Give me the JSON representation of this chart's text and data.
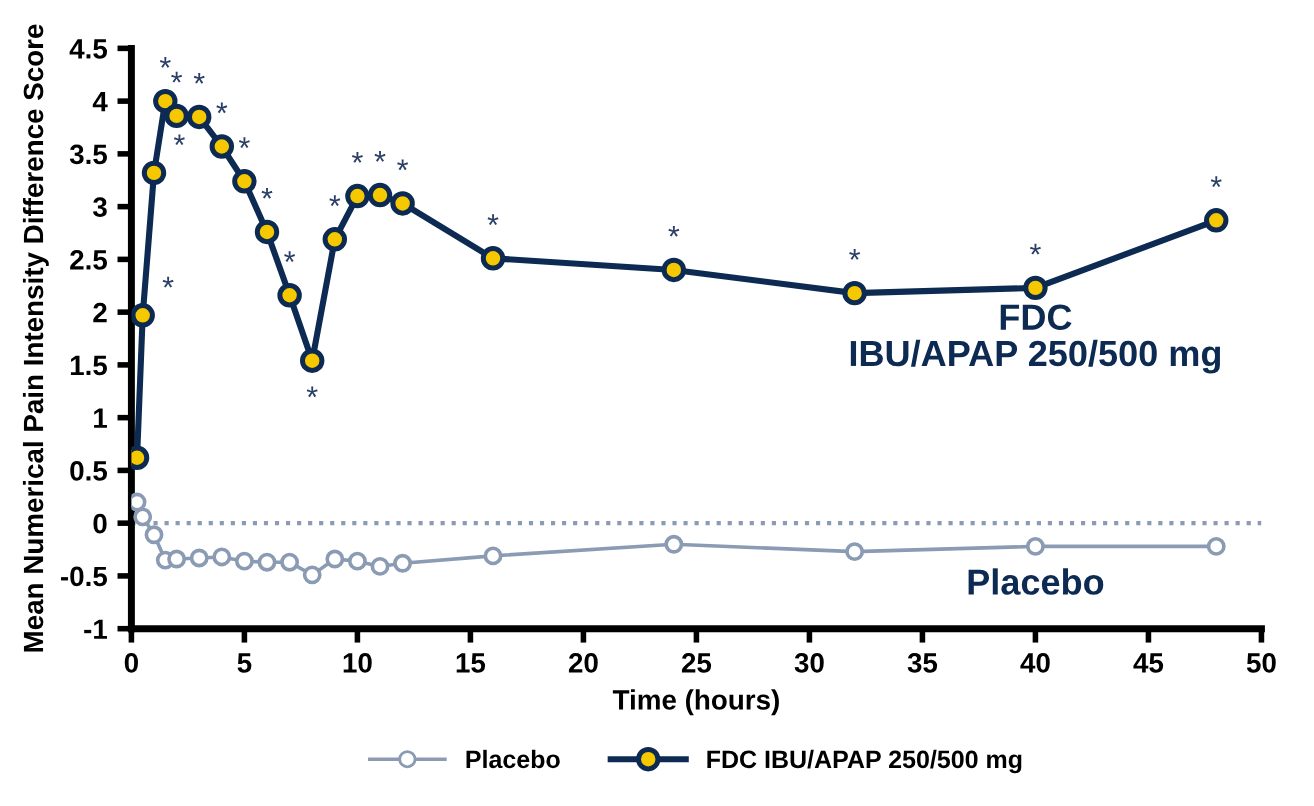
{
  "chart_data": {
    "type": "line",
    "xlabel": "Time (hours)",
    "ylabel": "Mean Numerical Pain Intensity Difference Score",
    "x": [
      0.25,
      0.5,
      1,
      1.5,
      2,
      3,
      4,
      5,
      6,
      7,
      8,
      9,
      10,
      11,
      12,
      16,
      24,
      32,
      40,
      48
    ],
    "series": [
      {
        "name": "Placebo",
        "color": "#8a9bb3",
        "values": [
          0.2,
          0.06,
          -0.11,
          -0.35,
          -0.34,
          -0.33,
          -0.32,
          -0.36,
          -0.37,
          -0.37,
          -0.49,
          -0.34,
          -0.36,
          -0.41,
          -0.38,
          -0.31,
          -0.2,
          -0.27,
          -0.22,
          -0.22
        ]
      },
      {
        "name": "FDC IBU/APAP 250/500 mg",
        "color": "#0d2a52",
        "colors": [
          "#f5c800",
          "#f5c800",
          "#f5c800",
          "#f5c800",
          "#f5c800",
          "#f5c800",
          "#f5c800",
          "#f5c800",
          "#f5c800",
          "#f5c800",
          "#f5c800",
          "#f5c800",
          "#f5c800",
          "#f5c800",
          "#f5c800",
          "#f5c800",
          "#f5c800",
          "#f5c800",
          "#f5c800",
          "#f5c800"
        ],
        "values": [
          0.62,
          1.97,
          3.32,
          4,
          3.86,
          3.85,
          3.57,
          3.24,
          2.76,
          2.16,
          1.54,
          2.69,
          3.1,
          3.11,
          3.03,
          2.51,
          2.4,
          2.18,
          2.23,
          2.87
        ]
      }
    ],
    "annotations": [
      {
        "text": "*",
        "x": 0.5,
        "y": 1.97
      },
      {
        "text": "*",
        "x": 1,
        "y": 3.32
      },
      {
        "text": "*",
        "x": 1.5,
        "y": 4
      },
      {
        "text": "*",
        "x": 2,
        "y": 3.86
      },
      {
        "text": "*",
        "x": 3,
        "y": 3.85
      },
      {
        "text": "*",
        "x": 4,
        "y": 3.57
      },
      {
        "text": "*",
        "x": 5,
        "y": 3.24
      },
      {
        "text": "*",
        "x": 6,
        "y": 2.76
      },
      {
        "text": "*",
        "x": 7,
        "y": 2.16
      },
      {
        "text": "*",
        "x": 8,
        "y": 1.54
      },
      {
        "text": "*",
        "x": 9,
        "y": 2.69
      },
      {
        "text": "*",
        "x": 10,
        "y": 3.1
      },
      {
        "text": "*",
        "x": 11,
        "y": 3.11
      },
      {
        "text": "*",
        "x": 12,
        "y": 3.03
      },
      {
        "text": "*",
        "x": 16,
        "y": 2.51
      },
      {
        "text": "*",
        "x": 24,
        "y": 2.4
      },
      {
        "text": "*",
        "x": 32,
        "y": 2.18
      },
      {
        "text": "*",
        "x": 40,
        "y": 2.23
      },
      {
        "text": "*",
        "x": 48,
        "y": 2.87
      },
      "FDC\nIBU/APAP 250/500 mg",
      "Placebo"
    ],
    "ref_lines": [
      {
        "axis": "y",
        "value": 0,
        "color": "#8a9bb3",
        "line_style": "dotted"
      }
    ],
    "xlim": [
      0,
      50
    ],
    "xticks": [
      0,
      5,
      10,
      15,
      20,
      25,
      30,
      35,
      40,
      45,
      50
    ],
    "ylim": [
      -1,
      4.5
    ],
    "yticks": [
      -1,
      -0.5,
      0,
      0.5,
      1,
      1.5,
      2,
      2.5,
      3,
      3.5,
      4,
      4.5
    ],
    "marker": "circle",
    "line_style": "solid",
    "grid": false,
    "legend": "bottom"
  }
}
